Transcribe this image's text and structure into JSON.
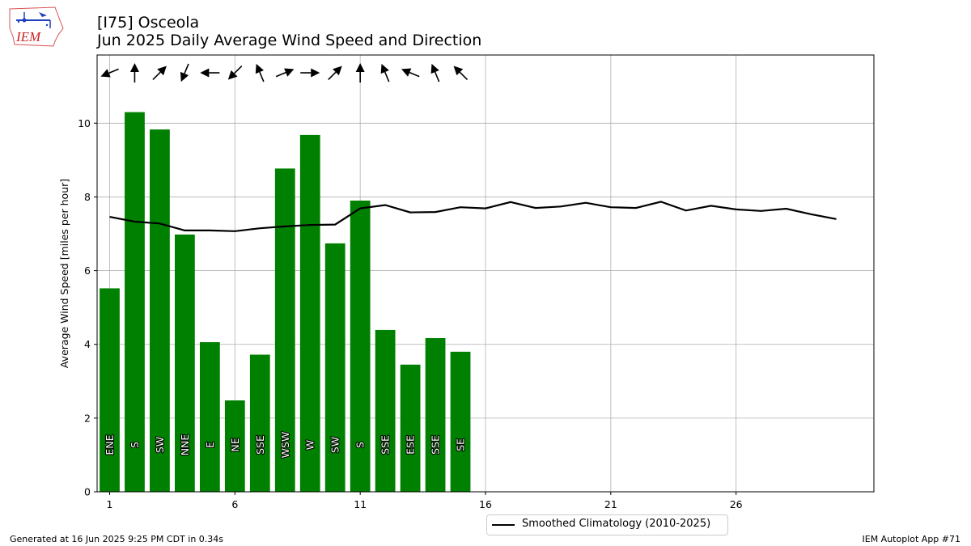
{
  "header": {
    "logo_text": "IEM",
    "title_line1": "[I75] Osceola",
    "title_line2": "Jun 2025 Daily Average Wind Speed and Direction"
  },
  "footer": {
    "left": "Generated at 16 Jun 2025 9:25 PM CDT in 0.34s",
    "right": "IEM Autoplot App #71"
  },
  "legend": {
    "label": "Smoothed Climatology (2010-2025)"
  },
  "colors": {
    "bar": "#008000",
    "climatology_line": "#000000",
    "grid": "#b0b0b0"
  },
  "chart_data": {
    "type": "bar",
    "ylabel": "Average Wind Speed [miles per hour]",
    "xlabel": "",
    "xlim": [
      0.5,
      31.5
    ],
    "ylim": [
      0,
      11.85
    ],
    "xticks": [
      1,
      6,
      11,
      16,
      21,
      26
    ],
    "yticks": [
      0,
      2,
      4,
      6,
      8,
      10
    ],
    "grid": true,
    "legend_position": "bottom-center",
    "days": [
      1,
      2,
      3,
      4,
      5,
      6,
      7,
      8,
      9,
      10,
      11,
      12,
      13,
      14,
      15
    ],
    "values": [
      5.52,
      10.3,
      9.83,
      6.98,
      4.06,
      2.48,
      3.72,
      8.77,
      9.68,
      6.74,
      7.9,
      4.39,
      3.45,
      4.17,
      3.8
    ],
    "directions": [
      "ENE",
      "S",
      "SW",
      "NNE",
      "E",
      "NE",
      "SSE",
      "WSW",
      "W",
      "SW",
      "S",
      "SSE",
      "ESE",
      "SSE",
      "SE"
    ],
    "direction_degrees": [
      67.5,
      180,
      225,
      22.5,
      90,
      45,
      157.5,
      247.5,
      270,
      225,
      180,
      157.5,
      112.5,
      157.5,
      135
    ],
    "climatology": {
      "name": "Smoothed Climatology (2010-2025)",
      "x": [
        1,
        2,
        3,
        4,
        5,
        6,
        7,
        8,
        9,
        10,
        11,
        12,
        13,
        14,
        15,
        16,
        17,
        18,
        19,
        20,
        21,
        22,
        23,
        24,
        25,
        26,
        27,
        28,
        29,
        30
      ],
      "values": [
        7.46,
        7.33,
        7.28,
        7.09,
        7.09,
        7.07,
        7.15,
        7.2,
        7.24,
        7.25,
        7.69,
        7.78,
        7.58,
        7.59,
        7.72,
        7.69,
        7.86,
        7.7,
        7.74,
        7.84,
        7.72,
        7.7,
        7.87,
        7.63,
        7.76,
        7.66,
        7.62,
        7.68,
        7.53,
        7.4
      ]
    }
  }
}
